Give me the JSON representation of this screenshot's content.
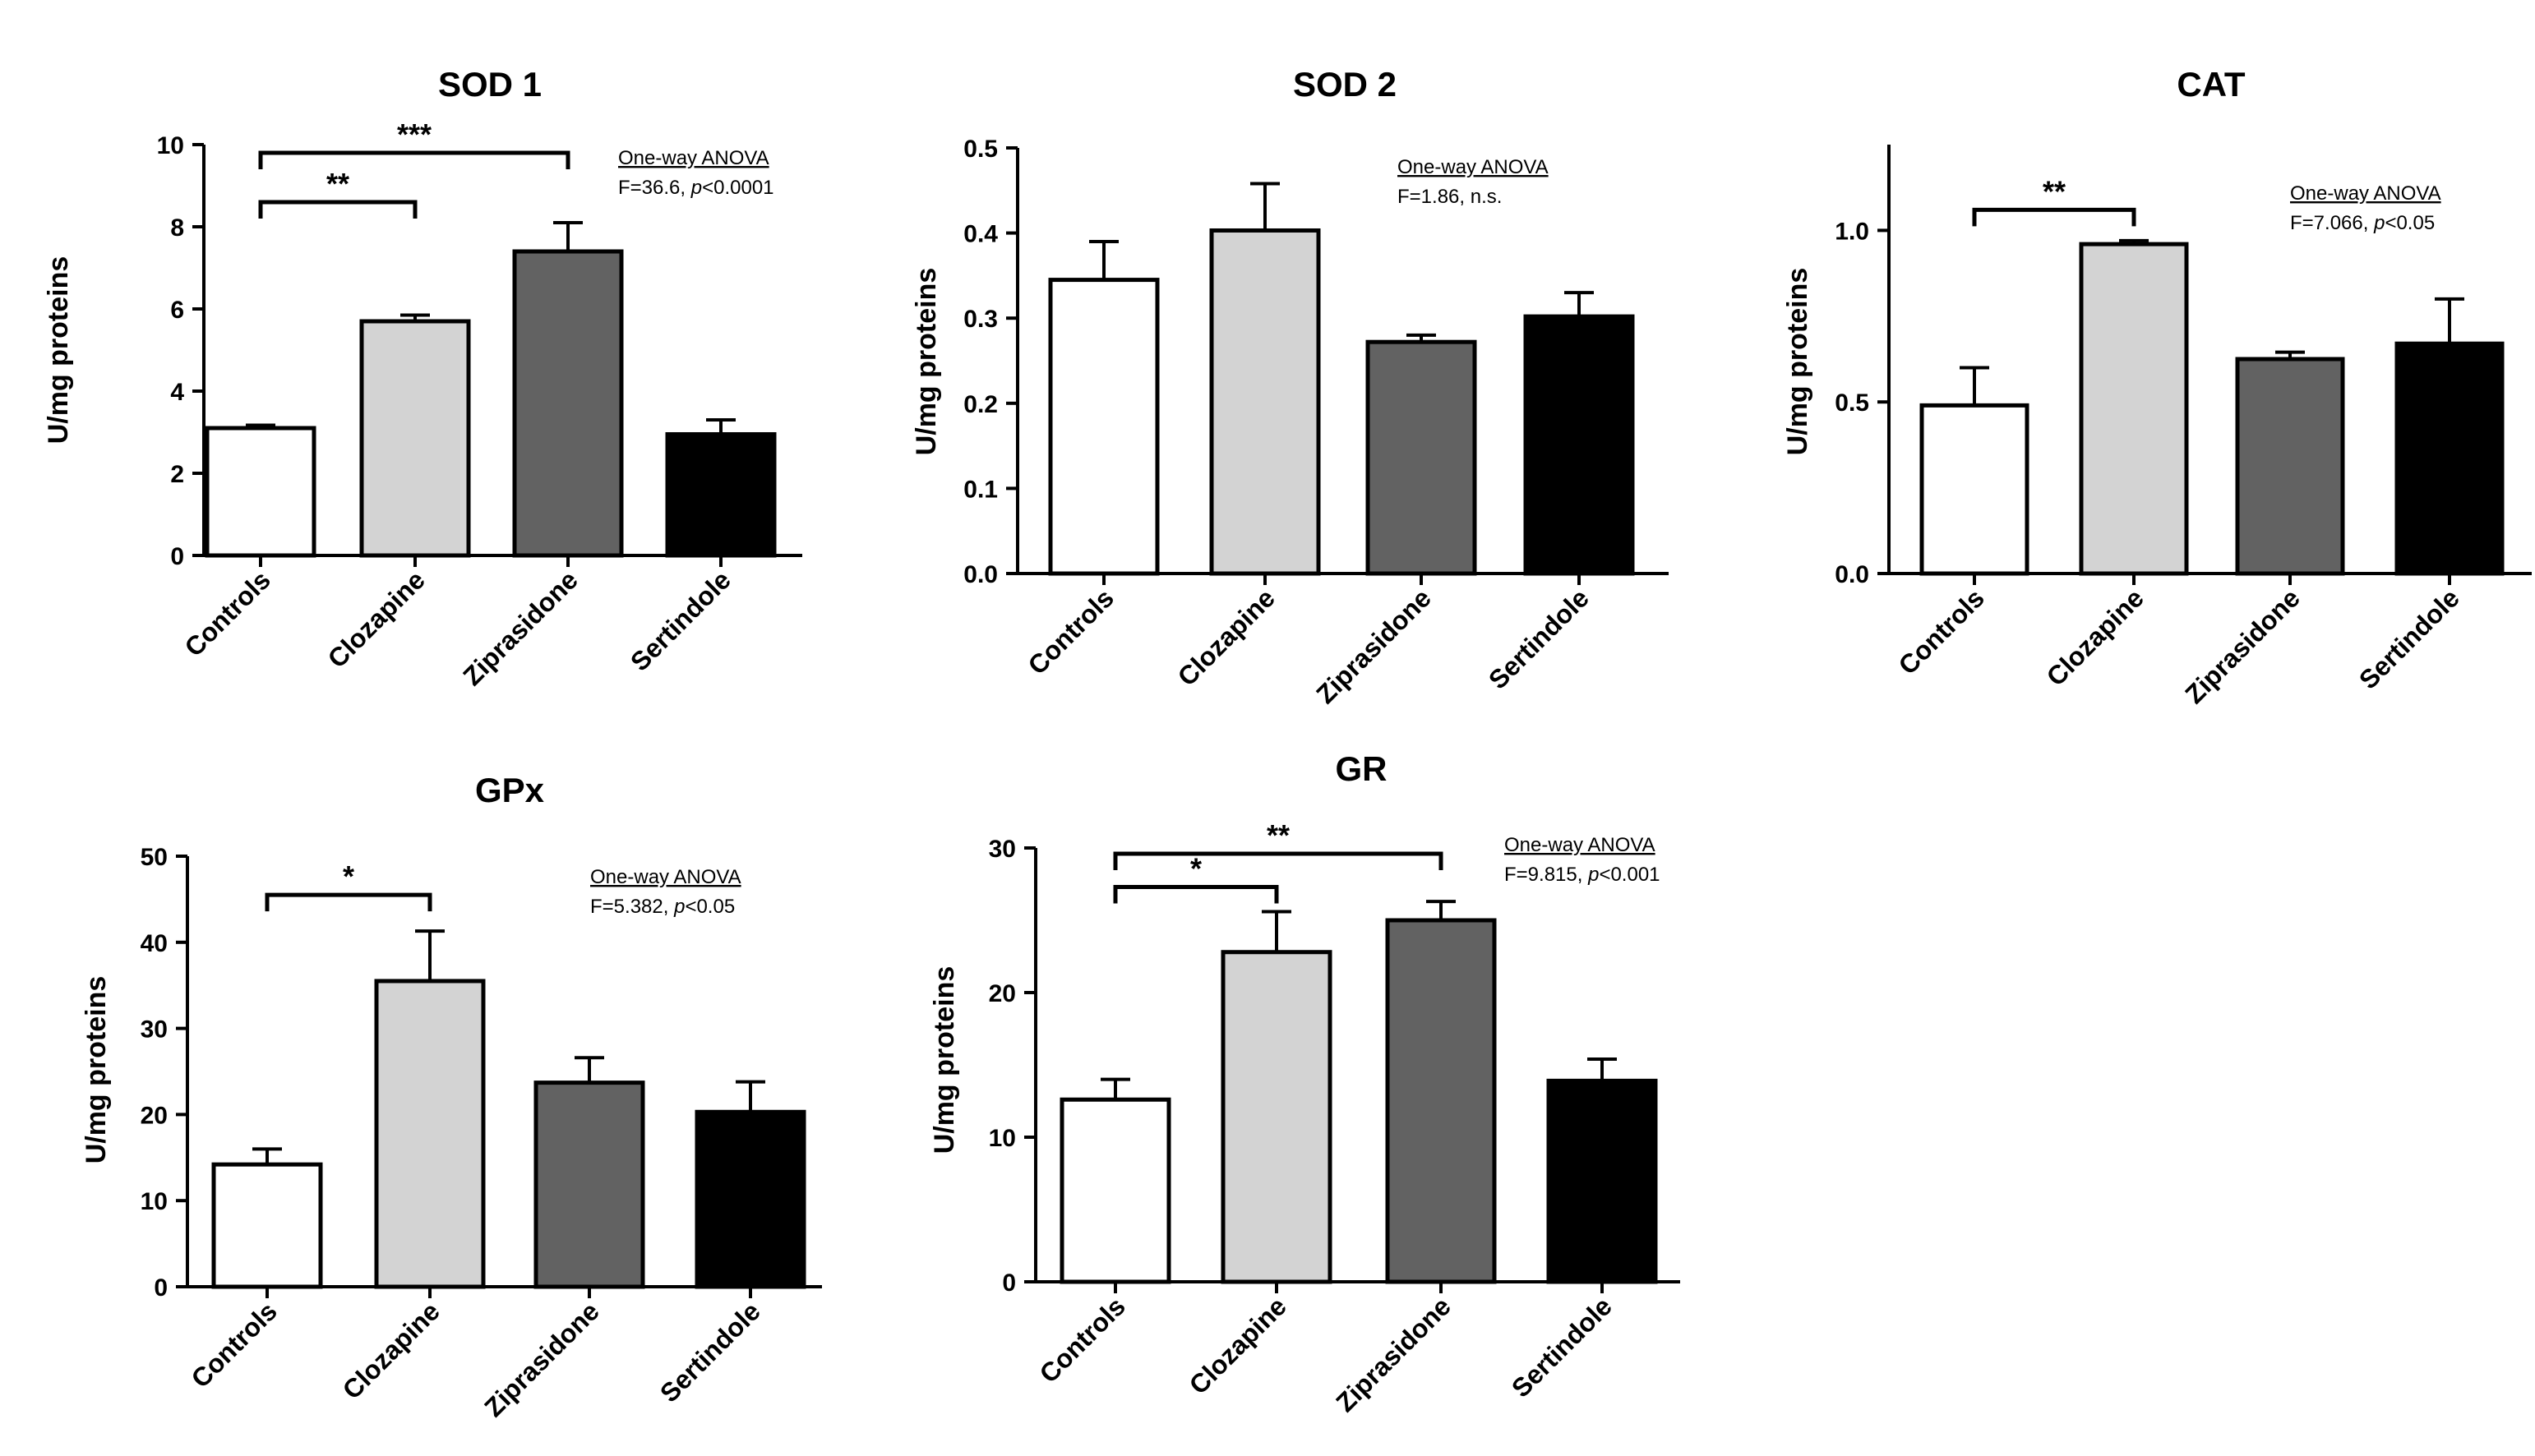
{
  "chart_data": [
    {
      "id": "sod1",
      "type": "bar",
      "title": "SOD 1",
      "ylabel": "U/mg proteins",
      "ylim": [
        0,
        10
      ],
      "yticks": [
        "0",
        "2",
        "4",
        "6",
        "8",
        "10"
      ],
      "categories": [
        "Controls",
        "Clozapine",
        "Ziprasidone",
        "Sertindole"
      ],
      "values": [
        3.1,
        5.7,
        7.4,
        2.95
      ],
      "errors": [
        0.07,
        0.15,
        0.7,
        0.35
      ],
      "colors": [
        "#ffffff",
        "#d3d3d3",
        "#626262",
        "#000000"
      ],
      "anova": {
        "line1": "One-way ANOVA",
        "line2_prefix": "F=36.6, ",
        "line2_p": "p",
        "line2_suffix": "<0.0001"
      },
      "significance": [
        {
          "from": 0,
          "to": 1,
          "label": "**",
          "level": 8.6
        },
        {
          "from": 0,
          "to": 2,
          "label": "***",
          "level": 9.8
        }
      ]
    },
    {
      "id": "sod2",
      "type": "bar",
      "title": "SOD 2",
      "ylabel": "U/mg proteins",
      "ylim": [
        0,
        0.5
      ],
      "yticks": [
        "0.0",
        "0.1",
        "0.2",
        "0.3",
        "0.4",
        "0.5"
      ],
      "categories": [
        "Controls",
        "Clozapine",
        "Ziprasidone",
        "Sertindole"
      ],
      "values": [
        0.345,
        0.403,
        0.272,
        0.302
      ],
      "errors": [
        0.045,
        0.055,
        0.008,
        0.028
      ],
      "colors": [
        "#ffffff",
        "#d3d3d3",
        "#626262",
        "#000000"
      ],
      "anova": {
        "line1": "One-way ANOVA",
        "line2_prefix": "F=1.86, n.s.",
        "line2_p": "",
        "line2_suffix": ""
      },
      "significance": []
    },
    {
      "id": "cat",
      "type": "bar",
      "title": "CAT",
      "ylabel": "U/mg proteins",
      "ylim": [
        0,
        1.25
      ],
      "yticks": [
        "0.0",
        "0.5",
        "1.0"
      ],
      "ytick_values": [
        0,
        0.5,
        1.0
      ],
      "categories": [
        "Controls",
        "Clozapine",
        "Ziprasidone",
        "Sertindole"
      ],
      "values": [
        0.49,
        0.96,
        0.625,
        0.67
      ],
      "errors": [
        0.11,
        0.01,
        0.02,
        0.13
      ],
      "colors": [
        "#ffffff",
        "#d3d3d3",
        "#626262",
        "#000000"
      ],
      "anova": {
        "line1": "One-way ANOVA",
        "line2_prefix": "F=7.066, ",
        "line2_p": "p",
        "line2_suffix": "<0.05"
      },
      "significance": [
        {
          "from": 0,
          "to": 1,
          "label": "**",
          "level": 1.06
        }
      ]
    },
    {
      "id": "gpx",
      "type": "bar",
      "title": "GPx",
      "ylabel": "U/mg proteins",
      "ylim": [
        0,
        50
      ],
      "yticks": [
        "0",
        "10",
        "20",
        "30",
        "40",
        "50"
      ],
      "categories": [
        "Controls",
        "Clozapine",
        "Ziprasidone",
        "Sertindole"
      ],
      "values": [
        14.2,
        35.5,
        23.7,
        20.3
      ],
      "errors": [
        1.8,
        5.8,
        2.9,
        3.5
      ],
      "colors": [
        "#ffffff",
        "#d3d3d3",
        "#626262",
        "#000000"
      ],
      "anova": {
        "line1": "One-way ANOVA",
        "line2_prefix": "F=5.382, ",
        "line2_p": "p",
        "line2_suffix": "<0.05"
      },
      "significance": [
        {
          "from": 0,
          "to": 1,
          "label": "*",
          "level": 45.5
        }
      ]
    },
    {
      "id": "gr",
      "type": "bar",
      "title": "GR",
      "ylabel": "U/mg proteins",
      "ylim": [
        0,
        30
      ],
      "yticks": [
        "0",
        "10",
        "20",
        "30"
      ],
      "categories": [
        "Controls",
        "Clozapine",
        "Ziprasidone",
        "Sertindole"
      ],
      "values": [
        12.6,
        22.8,
        25.0,
        13.9
      ],
      "errors": [
        1.4,
        2.8,
        1.3,
        1.5
      ],
      "colors": [
        "#ffffff",
        "#d3d3d3",
        "#626262",
        "#000000"
      ],
      "anova": {
        "line1": "One-way ANOVA",
        "line2_prefix": "F=9.815, ",
        "line2_p": "p",
        "line2_suffix": "<0.001"
      },
      "significance": [
        {
          "from": 0,
          "to": 1,
          "label": "*",
          "level": 27.3
        },
        {
          "from": 0,
          "to": 2,
          "label": "**",
          "level": 29.6
        }
      ]
    }
  ]
}
